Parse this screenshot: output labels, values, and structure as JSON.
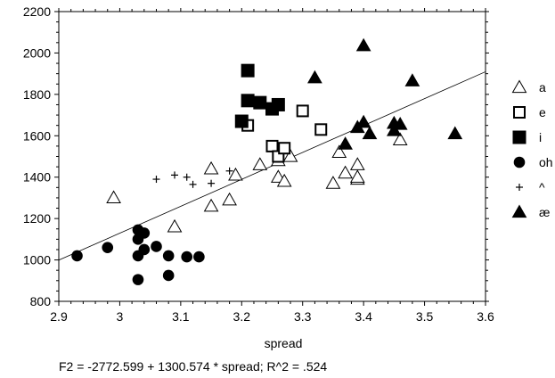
{
  "chart_data": {
    "type": "scatter",
    "title": "",
    "xlabel": "spread",
    "ylabel": "",
    "xlim": [
      2.9,
      3.6
    ],
    "ylim": [
      800,
      2200
    ],
    "x_ticks": [
      2.9,
      3,
      3.1,
      3.2,
      3.3,
      3.4,
      3.5,
      3.6
    ],
    "x_tick_labels": [
      "2.9",
      "3",
      "3.1",
      "3.2",
      "3.3",
      "3.4",
      "3.5",
      "3.6"
    ],
    "y_ticks": [
      800,
      1000,
      1200,
      1400,
      1600,
      1800,
      2000,
      2200
    ],
    "y_tick_labels": [
      "800",
      "1000",
      "1200",
      "1400",
      "1600",
      "1800",
      "2000",
      "2200"
    ],
    "grid": false,
    "legend": "right",
    "footer": "F2 = -2772.599 + 1300.574 * spread; R^2 = .524",
    "fit_line": {
      "intercept": -2772.599,
      "slope": 1300.574,
      "x_range": [
        2.9,
        3.6
      ]
    },
    "series": [
      {
        "name": "a",
        "marker": "triangle-open",
        "points": [
          [
            2.99,
            1300
          ],
          [
            3.09,
            1160
          ],
          [
            3.15,
            1440
          ],
          [
            3.15,
            1260
          ],
          [
            3.18,
            1290
          ],
          [
            3.19,
            1410
          ],
          [
            3.23,
            1460
          ],
          [
            3.26,
            1480
          ],
          [
            3.26,
            1400
          ],
          [
            3.27,
            1380
          ],
          [
            3.28,
            1500
          ],
          [
            3.35,
            1370
          ],
          [
            3.36,
            1520
          ],
          [
            3.37,
            1420
          ],
          [
            3.39,
            1390
          ],
          [
            3.39,
            1400
          ],
          [
            3.39,
            1460
          ],
          [
            3.46,
            1580
          ]
        ]
      },
      {
        "name": "e",
        "marker": "square-open",
        "points": [
          [
            3.21,
            1650
          ],
          [
            3.25,
            1550
          ],
          [
            3.26,
            1500
          ],
          [
            3.27,
            1540
          ],
          [
            3.3,
            1720
          ],
          [
            3.33,
            1630
          ]
        ]
      },
      {
        "name": "i",
        "marker": "square-filled",
        "points": [
          [
            3.2,
            1670
          ],
          [
            3.21,
            1915
          ],
          [
            3.21,
            1770
          ],
          [
            3.23,
            1760
          ],
          [
            3.25,
            1730
          ],
          [
            3.26,
            1750
          ]
        ]
      },
      {
        "name": "oh",
        "marker": "circle-filled",
        "points": [
          [
            2.93,
            1020
          ],
          [
            2.98,
            1060
          ],
          [
            3.03,
            1145
          ],
          [
            3.03,
            1100
          ],
          [
            3.03,
            1020
          ],
          [
            3.03,
            905
          ],
          [
            3.04,
            1130
          ],
          [
            3.04,
            1050
          ],
          [
            3.06,
            1065
          ],
          [
            3.08,
            1020
          ],
          [
            3.08,
            925
          ],
          [
            3.11,
            1015
          ],
          [
            3.13,
            1015
          ]
        ]
      },
      {
        "name": "^",
        "marker": "plus",
        "points": [
          [
            3.06,
            1390
          ],
          [
            3.09,
            1410
          ],
          [
            3.11,
            1400
          ],
          [
            3.12,
            1365
          ],
          [
            3.15,
            1370
          ],
          [
            3.18,
            1430
          ]
        ]
      },
      {
        "name": "æ",
        "marker": "triangle-filled",
        "points": [
          [
            3.32,
            1880
          ],
          [
            3.37,
            1560
          ],
          [
            3.39,
            1640
          ],
          [
            3.4,
            2035
          ],
          [
            3.4,
            1665
          ],
          [
            3.41,
            1610
          ],
          [
            3.45,
            1660
          ],
          [
            3.45,
            1625
          ],
          [
            3.46,
            1655
          ],
          [
            3.48,
            1865
          ],
          [
            3.55,
            1610
          ]
        ]
      }
    ]
  }
}
